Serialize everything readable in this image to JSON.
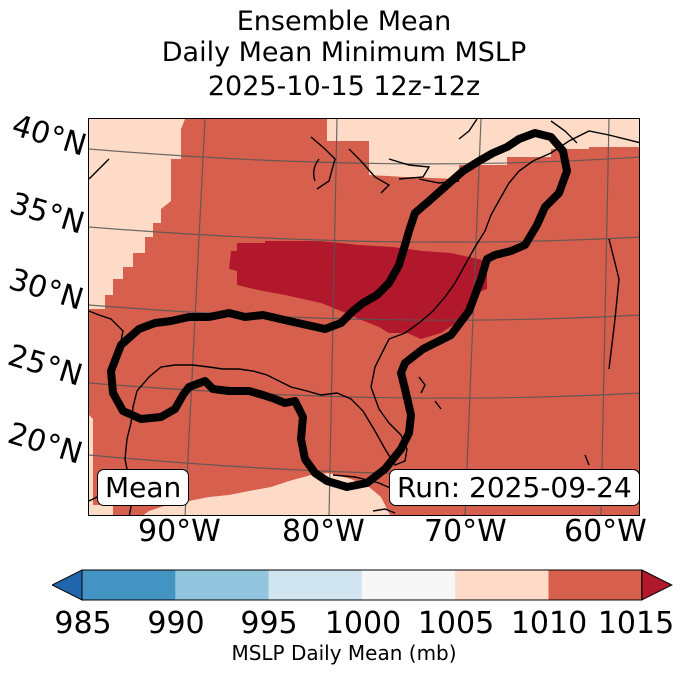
{
  "title": {
    "line1": "Ensemble Mean",
    "line2": "Daily Mean Minimum MSLP",
    "line3": "2025-10-15 12z-12z"
  },
  "map": {
    "lat_labels": [
      "40°N",
      "35°N",
      "30°N",
      "25°N",
      "20°N"
    ],
    "lon_labels": [
      "90°W",
      "80°W",
      "70°W",
      "60°W"
    ],
    "mean_label": "Mean",
    "run_label": "Run: 2025-09-24",
    "colors": {
      "1005-1010": "#fddbc7",
      "1010-1015": "#d6604d",
      "above-1015": "#b2182b",
      "outline": "#000000",
      "graticule": "#555555"
    }
  },
  "colorbar": {
    "ticks": [
      "985",
      "990",
      "995",
      "1000",
      "1005",
      "1010",
      "1015"
    ],
    "label": "MSLP Daily Mean (mb)",
    "segment_colors": [
      "#4393c3",
      "#92c5de",
      "#d1e5f0",
      "#f7f7f7",
      "#fddbc7",
      "#d6604d"
    ],
    "under_color": "#2166ac",
    "over_color": "#b2182b"
  }
}
